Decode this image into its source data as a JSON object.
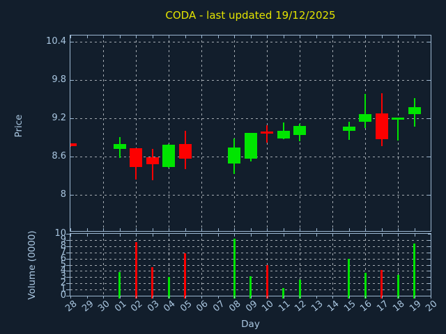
{
  "colors": {
    "background": "#121e2c",
    "frame": "#9db8d2",
    "grid": "#c9ced3",
    "text": "#a9c6e0",
    "title": "#e3e300",
    "up": "#00e500",
    "down": "#fd0000"
  },
  "chart_data": [
    {
      "type": "candlestick",
      "title": "CODA - last updated 19/12/2025",
      "ylabel": "Price",
      "xlabel": "",
      "categories": [
        "28",
        "29",
        "30",
        "01",
        "02",
        "03",
        "04",
        "05",
        "06",
        "07",
        "08",
        "09",
        "10",
        "11",
        "12",
        "13",
        "14",
        "15",
        "16",
        "17",
        "18",
        "19",
        "20"
      ],
      "yticks": [
        8,
        8.6,
        9.2,
        9.8,
        10.4
      ],
      "ylim": [
        7.43,
        10.5
      ],
      "grid": true,
      "legend": "none",
      "vertical_grid_every_2nd_day": true,
      "ohlc": [
        {
          "day": "28",
          "open": 8.81,
          "high": 8.81,
          "low": 8.75,
          "close": 8.76
        },
        {
          "day": "01",
          "open": 8.72,
          "high": 8.9,
          "low": 8.58,
          "close": 8.8
        },
        {
          "day": "02",
          "open": 8.73,
          "high": 8.73,
          "low": 8.24,
          "close": 8.43
        },
        {
          "day": "03",
          "open": 8.59,
          "high": 8.72,
          "low": 8.23,
          "close": 8.48
        },
        {
          "day": "04",
          "open": 8.44,
          "high": 8.8,
          "low": 8.42,
          "close": 8.78
        },
        {
          "day": "05",
          "open": 8.8,
          "high": 9.0,
          "low": 8.4,
          "close": 8.57
        },
        {
          "day": "08",
          "open": 8.49,
          "high": 8.88,
          "low": 8.33,
          "close": 8.74
        },
        {
          "day": "09",
          "open": 8.57,
          "high": 8.97,
          "low": 8.52,
          "close": 8.97
        },
        {
          "day": "10",
          "open": 8.99,
          "high": 9.09,
          "low": 8.82,
          "close": 8.96
        },
        {
          "day": "11",
          "open": 8.88,
          "high": 9.13,
          "low": 8.87,
          "close": 9.0
        },
        {
          "day": "12",
          "open": 8.94,
          "high": 9.11,
          "low": 8.84,
          "close": 9.08
        },
        {
          "day": "15",
          "open": 9.0,
          "high": 9.14,
          "low": 8.86,
          "close": 9.07
        },
        {
          "day": "16",
          "open": 9.14,
          "high": 9.58,
          "low": 9.05,
          "close": 9.26
        },
        {
          "day": "17",
          "open": 9.28,
          "high": 9.59,
          "low": 8.76,
          "close": 8.87
        },
        {
          "day": "18",
          "open": 9.19,
          "high": 9.19,
          "low": 8.85,
          "close": 9.19
        },
        {
          "day": "19",
          "open": 9.27,
          "high": 9.52,
          "low": 9.07,
          "close": 9.38
        }
      ]
    },
    {
      "type": "bar",
      "ylabel": "Volume (0000)",
      "xlabel": "Day",
      "categories": [
        "28",
        "29",
        "30",
        "01",
        "02",
        "03",
        "04",
        "05",
        "06",
        "07",
        "08",
        "09",
        "10",
        "11",
        "12",
        "13",
        "14",
        "15",
        "16",
        "17",
        "18",
        "19",
        "20"
      ],
      "yticks": [
        0,
        1,
        2,
        3,
        4,
        5,
        6,
        7,
        8,
        9,
        10
      ],
      "ylim": [
        0,
        10
      ],
      "grid": true,
      "values": [
        {
          "day": "01",
          "value": 3.8,
          "color": "green"
        },
        {
          "day": "02",
          "value": 8.6,
          "color": "red"
        },
        {
          "day": "03",
          "value": 4.6,
          "color": "red"
        },
        {
          "day": "04",
          "value": 3.0,
          "color": "green"
        },
        {
          "day": "05",
          "value": 6.8,
          "color": "red"
        },
        {
          "day": "08",
          "value": 9.2,
          "color": "green"
        },
        {
          "day": "09",
          "value": 3.1,
          "color": "green"
        },
        {
          "day": "10",
          "value": 4.9,
          "color": "red"
        },
        {
          "day": "11",
          "value": 1.2,
          "color": "green"
        },
        {
          "day": "12",
          "value": 2.6,
          "color": "green"
        },
        {
          "day": "15",
          "value": 6.0,
          "color": "green"
        },
        {
          "day": "16",
          "value": 3.7,
          "color": "green"
        },
        {
          "day": "17",
          "value": 4.2,
          "color": "red"
        },
        {
          "day": "18",
          "value": 3.4,
          "color": "green"
        },
        {
          "day": "19",
          "value": 8.4,
          "color": "green"
        }
      ]
    }
  ]
}
